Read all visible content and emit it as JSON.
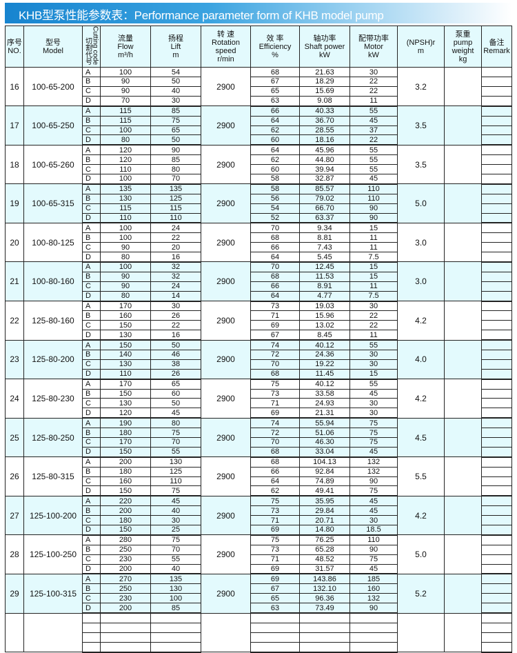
{
  "title": "KHB型泵性能参数表：Performance parameter form of KHB model pump",
  "headers": {
    "no": [
      "序号",
      "NO."
    ],
    "model": [
      "型号",
      "Model"
    ],
    "code": [
      "切割代号",
      "Cutting code"
    ],
    "flow": [
      "流量",
      "Flow",
      "m³/h"
    ],
    "lift": [
      "扬程",
      "Lift",
      "m"
    ],
    "speed": [
      "转 速",
      "Rotation",
      "speed",
      "r/min"
    ],
    "eff": [
      "效 率",
      "Efficiency",
      "%"
    ],
    "shaft": [
      "轴功率",
      "Shaft power",
      "kW"
    ],
    "motor": [
      "配带功率",
      "Motor",
      "kW"
    ],
    "npsh": [
      "(NPSH)r",
      "m"
    ],
    "weight": [
      "泵重",
      "pump",
      "weight",
      "kg"
    ],
    "remark": [
      "备注",
      "Remark"
    ]
  },
  "colors": {
    "band": "#e3fafd",
    "banner": "#1784cf"
  },
  "groups": [
    {
      "no": "16",
      "model": "100-65-200",
      "speed": "2900",
      "npsh": "3.2",
      "rows": [
        [
          "A",
          "100",
          "54",
          "68",
          "21.63",
          "30"
        ],
        [
          "B",
          "90",
          "50",
          "67",
          "18.29",
          "22"
        ],
        [
          "C",
          "90",
          "40",
          "65",
          "15.69",
          "22"
        ],
        [
          "D",
          "70",
          "30",
          "63",
          "9.08",
          "11"
        ]
      ]
    },
    {
      "no": "17",
      "model": "100-65-250",
      "speed": "2900",
      "npsh": "3.5",
      "rows": [
        [
          "A",
          "115",
          "85",
          "66",
          "40.33",
          "55"
        ],
        [
          "B",
          "115",
          "75",
          "64",
          "36.70",
          "45"
        ],
        [
          "C",
          "100",
          "65",
          "62",
          "28.55",
          "37"
        ],
        [
          "D",
          "80",
          "50",
          "60",
          "18.16",
          "22"
        ]
      ]
    },
    {
      "no": "18",
      "model": "100-65-260",
      "speed": "2900",
      "npsh": "3.5",
      "rows": [
        [
          "A",
          "120",
          "90",
          "64",
          "45.96",
          "55"
        ],
        [
          "B",
          "120",
          "85",
          "62",
          "44.80",
          "55"
        ],
        [
          "C",
          "110",
          "80",
          "60",
          "39.94",
          "55"
        ],
        [
          "D",
          "100",
          "70",
          "58",
          "32.87",
          "45"
        ]
      ]
    },
    {
      "no": "19",
      "model": "100-65-315",
      "speed": "2900",
      "npsh": "5.0",
      "rows": [
        [
          "A",
          "135",
          "135",
          "58",
          "85.57",
          "110"
        ],
        [
          "B",
          "130",
          "125",
          "56",
          "79.02",
          "110"
        ],
        [
          "C",
          "115",
          "115",
          "54",
          "66.70",
          "90"
        ],
        [
          "D",
          "110",
          "110",
          "52",
          "63.37",
          "90"
        ]
      ]
    },
    {
      "no": "20",
      "model": "100-80-125",
      "speed": "2900",
      "npsh": "3.0",
      "rows": [
        [
          "A",
          "100",
          "24",
          "70",
          "9.34",
          "15"
        ],
        [
          "B",
          "100",
          "22",
          "68",
          "8.81",
          "11"
        ],
        [
          "C",
          "90",
          "20",
          "66",
          "7.43",
          "11"
        ],
        [
          "D",
          "80",
          "16",
          "64",
          "5.45",
          "7.5"
        ]
      ]
    },
    {
      "no": "21",
      "model": "100-80-160",
      "speed": "2900",
      "npsh": "3.0",
      "rows": [
        [
          "A",
          "100",
          "32",
          "70",
          "12.45",
          "15"
        ],
        [
          "B",
          "90",
          "32",
          "68",
          "11.53",
          "15"
        ],
        [
          "C",
          "90",
          "24",
          "66",
          "8.91",
          "11"
        ],
        [
          "D",
          "80",
          "14",
          "64",
          "4.77",
          "7.5"
        ]
      ]
    },
    {
      "no": "22",
      "model": "125-80-160",
      "speed": "2900",
      "npsh": "4.2",
      "rows": [
        [
          "A",
          "170",
          "30",
          "73",
          "19.03",
          "30"
        ],
        [
          "B",
          "160",
          "26",
          "71",
          "15.96",
          "22"
        ],
        [
          "C",
          "150",
          "22",
          "69",
          "13.02",
          "22"
        ],
        [
          "D",
          "130",
          "16",
          "67",
          "8.45",
          "11"
        ]
      ]
    },
    {
      "no": "23",
      "model": "125-80-200",
      "speed": "2900",
      "npsh": "4.0",
      "rows": [
        [
          "A",
          "150",
          "50",
          "74",
          "40.12",
          "55"
        ],
        [
          "B",
          "140",
          "46",
          "72",
          "24.36",
          "30"
        ],
        [
          "C",
          "130",
          "38",
          "70",
          "19.22",
          "30"
        ],
        [
          "D",
          "110",
          "26",
          "68",
          "11.45",
          "15"
        ]
      ]
    },
    {
      "no": "24",
      "model": "125-80-230",
      "speed": "2900",
      "npsh": "4.2",
      "rows": [
        [
          "A",
          "170",
          "65",
          "75",
          "40.12",
          "55"
        ],
        [
          "B",
          "150",
          "60",
          "73",
          "33.58",
          "45"
        ],
        [
          "C",
          "130",
          "50",
          "71",
          "24.93",
          "30"
        ],
        [
          "D",
          "120",
          "45",
          "69",
          "21.31",
          "30"
        ]
      ]
    },
    {
      "no": "25",
      "model": "125-80-250",
      "speed": "2900",
      "npsh": "4.5",
      "rows": [
        [
          "A",
          "190",
          "80",
          "74",
          "55.94",
          "75"
        ],
        [
          "B",
          "180",
          "75",
          "72",
          "51.06",
          "75"
        ],
        [
          "C",
          "170",
          "70",
          "70",
          "46.30",
          "75"
        ],
        [
          "D",
          "150",
          "55",
          "68",
          "33.04",
          "45"
        ]
      ]
    },
    {
      "no": "26",
      "model": "125-80-315",
      "speed": "2900",
      "npsh": "5.5",
      "rows": [
        [
          "A",
          "200",
          "130",
          "68",
          "104.13",
          "132"
        ],
        [
          "B",
          "180",
          "125",
          "66",
          "92.84",
          "132"
        ],
        [
          "C",
          "160",
          "110",
          "64",
          "74.89",
          "90"
        ],
        [
          "D",
          "150",
          "75",
          "62",
          "49.41",
          "75"
        ]
      ]
    },
    {
      "no": "27",
      "model": "125-100-200",
      "speed": "2900",
      "npsh": "4.2",
      "rows": [
        [
          "A",
          "220",
          "45",
          "75",
          "35.95",
          "45"
        ],
        [
          "B",
          "200",
          "40",
          "73",
          "29.84",
          "45"
        ],
        [
          "C",
          "180",
          "30",
          "71",
          "20.71",
          "30"
        ],
        [
          "D",
          "150",
          "25",
          "69",
          "14.80",
          "18.5"
        ]
      ]
    },
    {
      "no": "28",
      "model": "125-100-250",
      "speed": "2900",
      "npsh": "5.0",
      "rows": [
        [
          "A",
          "280",
          "75",
          "75",
          "76.25",
          "110"
        ],
        [
          "B",
          "250",
          "70",
          "73",
          "65.28",
          "90"
        ],
        [
          "C",
          "230",
          "55",
          "71",
          "48.52",
          "75"
        ],
        [
          "D",
          "200",
          "40",
          "69",
          "31.57",
          "45"
        ]
      ]
    },
    {
      "no": "29",
      "model": "125-100-315",
      "speed": "2900",
      "npsh": "5.2",
      "rows": [
        [
          "A",
          "270",
          "135",
          "69",
          "143.86",
          "185"
        ],
        [
          "B",
          "250",
          "130",
          "67",
          "132.10",
          "160"
        ],
        [
          "C",
          "230",
          "100",
          "65",
          "96.36",
          "132"
        ],
        [
          "D",
          "200",
          "85",
          "63",
          "73.49",
          "90"
        ]
      ]
    },
    {
      "no": "",
      "model": "",
      "speed": "",
      "npsh": "",
      "rows": [
        [
          "",
          "",
          "",
          "",
          "",
          ""
        ],
        [
          "",
          "",
          "",
          "",
          "",
          ""
        ],
        [
          "",
          "",
          "",
          "",
          "",
          ""
        ],
        [
          "",
          "",
          "",
          "",
          "",
          ""
        ]
      ]
    }
  ]
}
